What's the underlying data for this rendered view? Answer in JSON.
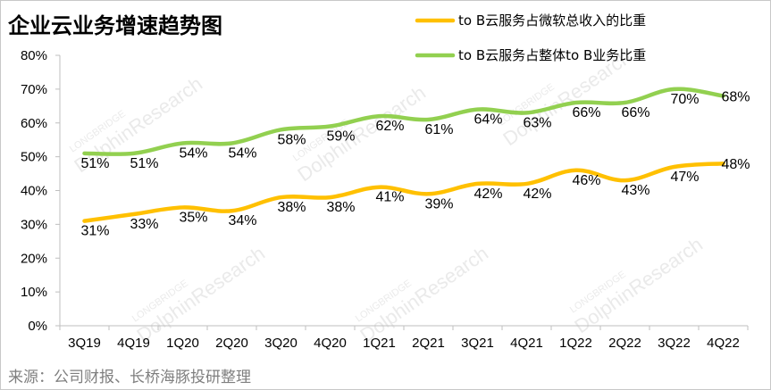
{
  "title": "企业云业务增速趋势图",
  "source": "来源：公司财报、长桥海豚投研整理",
  "watermark": {
    "brand": "LONGBRIDGE",
    "brand2": "DolphinResearch"
  },
  "chart_data": {
    "type": "line",
    "categories": [
      "3Q19",
      "4Q19",
      "1Q20",
      "2Q20",
      "3Q20",
      "4Q20",
      "1Q21",
      "2Q21",
      "3Q21",
      "4Q21",
      "1Q22",
      "2Q22",
      "3Q22",
      "4Q22"
    ],
    "y_ticks": [
      "0%",
      "10%",
      "20%",
      "30%",
      "40%",
      "50%",
      "60%",
      "70%",
      "80%"
    ],
    "ylim": [
      0,
      80
    ],
    "grid": false,
    "legend_position": "top-right",
    "series": [
      {
        "name": "to B云服务占微软总收入的比重",
        "color": "#ffc000",
        "values": [
          31,
          33,
          35,
          34,
          38,
          38,
          41,
          39,
          42,
          42,
          46,
          43,
          47,
          48
        ],
        "labels": [
          "31%",
          "33%",
          "35%",
          "34%",
          "38%",
          "38%",
          "41%",
          "39%",
          "42%",
          "42%",
          "46%",
          "43%",
          "47%",
          "48%"
        ]
      },
      {
        "name": "to B云服务占整体to B业务比重",
        "color": "#92d050",
        "values": [
          51,
          51,
          54,
          54,
          58,
          59,
          62,
          61,
          64,
          63,
          66,
          66,
          70,
          68
        ],
        "labels": [
          "51%",
          "51%",
          "54%",
          "54%",
          "58%",
          "59%",
          "62%",
          "61%",
          "64%",
          "63%",
          "66%",
          "66%",
          "70%",
          "68%"
        ]
      }
    ]
  }
}
